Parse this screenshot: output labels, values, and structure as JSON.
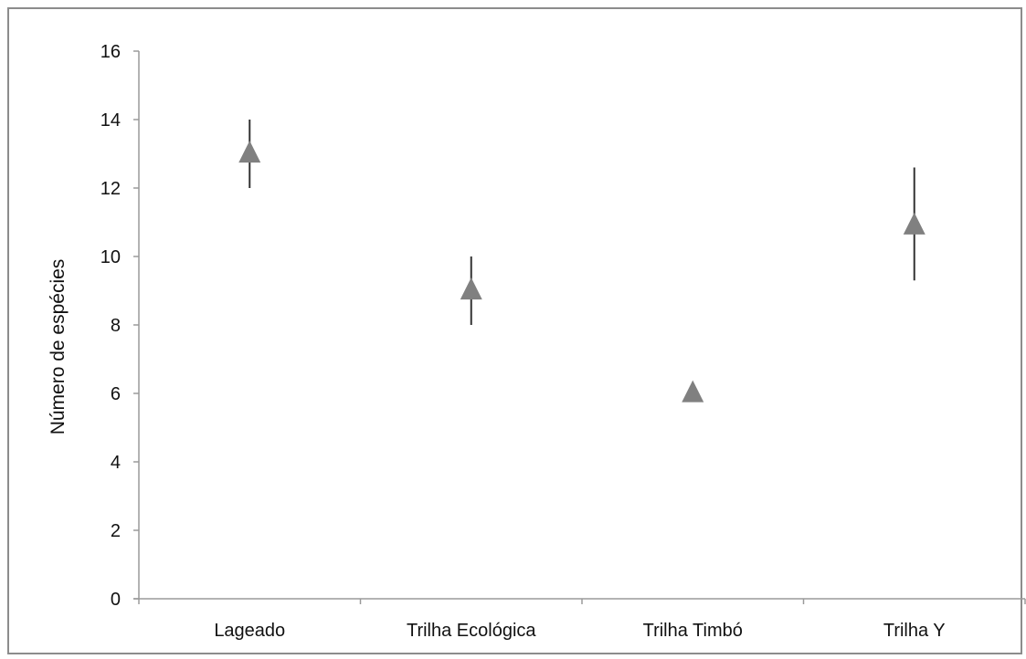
{
  "chart_data": {
    "type": "scatter",
    "title": "",
    "xlabel": "",
    "ylabel": "Número de espécies",
    "categories": [
      "Lageado",
      "Trilha Ecológica",
      "Trilha Timbó",
      "Trilha Y"
    ],
    "series": [
      {
        "values": [
          13,
          9,
          6,
          10.9
        ],
        "error_low": [
          12,
          8,
          6,
          9.3
        ],
        "error_high": [
          14,
          10,
          6,
          12.6
        ],
        "marker": "triangle",
        "color": "#808080"
      }
    ],
    "ylim": [
      0,
      16
    ],
    "yticks": [
      "0",
      "2",
      "4",
      "6",
      "8",
      "10",
      "12",
      "14",
      "16"
    ],
    "grid": false,
    "legend": "none",
    "axis_color": "#9a9a9a",
    "errorbar_color": "#333333"
  }
}
